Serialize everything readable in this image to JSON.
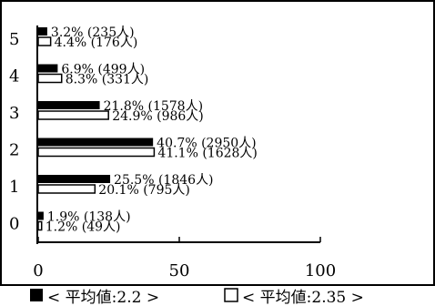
{
  "chart_data": {
    "type": "bar",
    "orientation": "horizontal",
    "categories": [
      "5",
      "4",
      "3",
      "2",
      "1",
      "0"
    ],
    "series": [
      {
        "name": "< 平均値:2.2 >",
        "color": "#000000",
        "values": [
          3.2,
          6.9,
          21.8,
          40.7,
          25.5,
          1.9
        ],
        "labels": [
          "3.2% (235人)",
          "6.9% (499人)",
          "21.8% (1578人)",
          "40.7% (2950人)",
          "25.5% (1846人)",
          "1.9% (138人)"
        ]
      },
      {
        "name": "< 平均値:2.35 >",
        "color": "#ffffff",
        "values": [
          4.4,
          8.3,
          24.9,
          41.1,
          20.1,
          1.2
        ],
        "labels": [
          "4.4% (176人)",
          "8.3% (331人)",
          "24.9% (986人)",
          "41.1% (1628人)",
          "20.1% (795人)",
          "1.2% (49人)"
        ]
      }
    ],
    "xlim": [
      0,
      100
    ],
    "xticks": [
      "0",
      "50",
      "100"
    ],
    "grid": false,
    "legend_position": "bottom",
    "title": "",
    "xlabel": "",
    "ylabel": ""
  }
}
